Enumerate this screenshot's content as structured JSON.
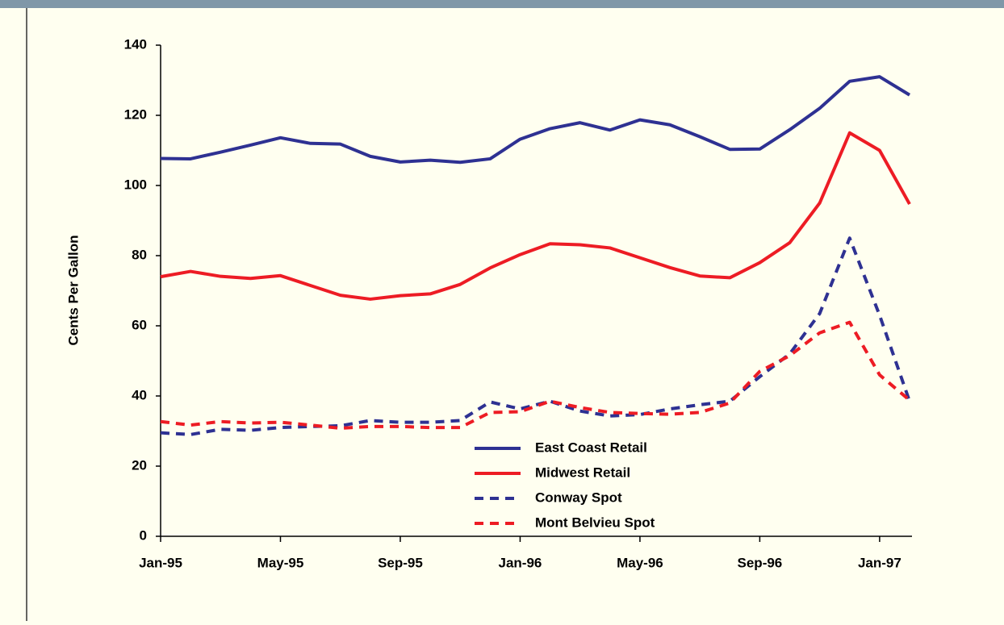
{
  "chart_data": {
    "type": "line",
    "y_label": "Cents Per Gallon",
    "categories": [
      "Jan-95",
      null,
      null,
      null,
      "May-95",
      null,
      null,
      null,
      "Sep-95",
      null,
      null,
      null,
      "Jan-96",
      null,
      null,
      null,
      "May-96",
      null,
      null,
      null,
      "Sep-96",
      null,
      null,
      null,
      "Jan-97",
      null
    ],
    "series": [
      {
        "name": "East Coast Retail",
        "color": "#2e3192",
        "dashed": false,
        "values": [
          107.7,
          107.6,
          109.5,
          111.5,
          113.6,
          112,
          111.8,
          108.3,
          106.7,
          107.2,
          106.6,
          107.6,
          113.2,
          116.2,
          117.9,
          115.8,
          118.7,
          117.3,
          113.9,
          110.3,
          110.4,
          115.9,
          122,
          129.7,
          131,
          125.8
        ]
      },
      {
        "name": "Midwest Retail",
        "color": "#ed1c24",
        "dashed": false,
        "values": [
          74,
          75.5,
          74.1,
          73.5,
          74.3,
          71.5,
          68.7,
          67.6,
          68.6,
          69.1,
          71.8,
          76.5,
          80.3,
          83.4,
          83.1,
          82.2,
          79.4,
          76.6,
          74.2,
          73.7,
          78,
          83.7,
          95,
          115,
          110,
          94.7
        ]
      },
      {
        "name": "Conway Spot",
        "color": "#2e3192",
        "dashed": true,
        "values": [
          29.5,
          29,
          30.5,
          30.2,
          31,
          31.3,
          31.5,
          33,
          32.5,
          32.5,
          33,
          38.3,
          36.3,
          38.5,
          35.7,
          34.3,
          34.7,
          36.3,
          37.5,
          38.5,
          45.5,
          52,
          63.5,
          85,
          63,
          38.5
        ]
      },
      {
        "name": "Mont Belvieu Spot",
        "color": "#ed1c24",
        "dashed": true,
        "values": [
          32.7,
          31.7,
          32.7,
          32.3,
          32.5,
          31.7,
          30.8,
          31.3,
          31.3,
          31,
          31,
          35.3,
          35.5,
          38.5,
          36.7,
          35.3,
          35,
          34.8,
          35.3,
          38,
          47,
          51.5,
          58,
          61,
          46,
          38.8
        ]
      }
    ],
    "ylim": [
      0,
      140
    ],
    "yticks": [
      0,
      20,
      40,
      60,
      80,
      100,
      120,
      140
    ],
    "grid": false
  }
}
